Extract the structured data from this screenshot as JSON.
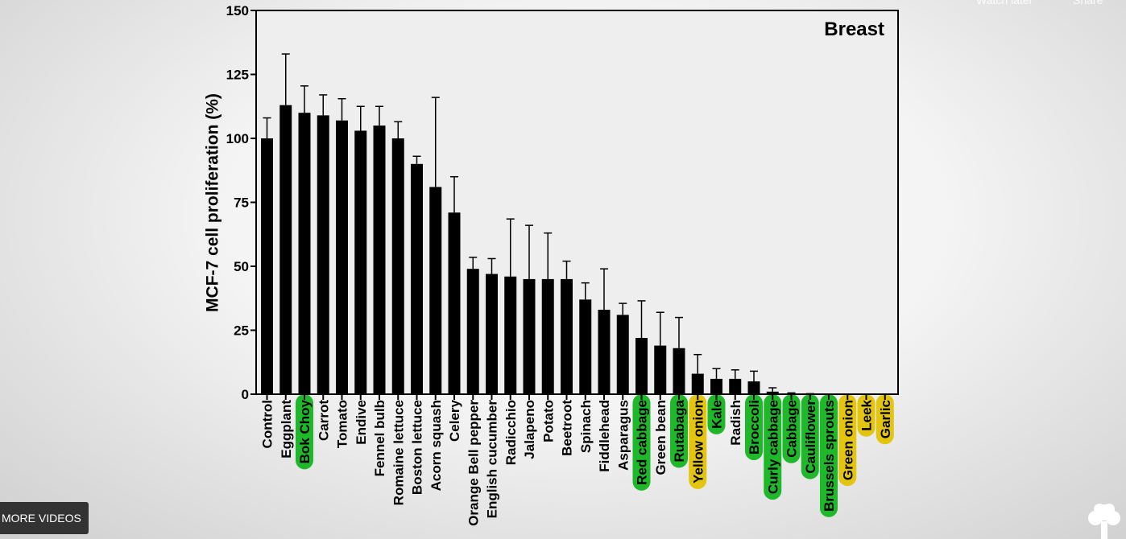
{
  "overlay": {
    "more_videos": "MORE VIDEOS",
    "watch_later": "Watch later",
    "share": "Share",
    "logo_icon": "tree-icon"
  },
  "colors": {
    "bar": "#000000",
    "green_highlight": "#1fb82a",
    "yellow_highlight": "#e3c40f",
    "plot_background": "#eeeeee"
  },
  "chart_data": {
    "type": "bar",
    "title": "Breast",
    "xlabel": "",
    "ylabel": "MCF-7 cell proliferation (%)",
    "ylim": [
      0,
      150
    ],
    "yticks": [
      0,
      25,
      50,
      75,
      100,
      125,
      150
    ],
    "grid": false,
    "error_bars": true,
    "categories": [
      "Control",
      "Eggplant",
      "Bok Choy",
      "Carrot",
      "Tomato",
      "Endive",
      "Fennel bulb",
      "Romaine lettuce",
      "Boston lettuce",
      "Acorn squash",
      "Celery",
      "Orange Bell pepper",
      "English cucumber",
      "Radicchio",
      "Jalapeno",
      "Potato",
      "Beetroot",
      "Spinach",
      "Fiddlehead",
      "Asparagus",
      "Red cabbage",
      "Green bean",
      "Rutabaga",
      "Yellow onion",
      "Kale",
      "Radish",
      "Broccoli",
      "Curly cabbage",
      "Cabbage",
      "Cauliflower",
      "Brussels sprouts",
      "Green onion",
      "Leek",
      "Garlic"
    ],
    "values": [
      100,
      113,
      110,
      109,
      107,
      103,
      105,
      100,
      90,
      81,
      71,
      49,
      47,
      46,
      45,
      45,
      45,
      37,
      33,
      31,
      22,
      19,
      18,
      8,
      6,
      6,
      5,
      1,
      0,
      0,
      0,
      0,
      0,
      0
    ],
    "error_upper": [
      108,
      133,
      120.5,
      117,
      115.5,
      112.5,
      112.5,
      106.5,
      93,
      116,
      85,
      53.5,
      53,
      68.5,
      66,
      63,
      52,
      43.5,
      49,
      35.5,
      36.5,
      32,
      30,
      15.5,
      10,
      9.5,
      9,
      2.5,
      0.5,
      0.2,
      0,
      0,
      0,
      0
    ],
    "label_highlight": [
      "none",
      "none",
      "green",
      "none",
      "none",
      "none",
      "none",
      "none",
      "none",
      "none",
      "none",
      "none",
      "none",
      "none",
      "none",
      "none",
      "none",
      "none",
      "none",
      "none",
      "green",
      "none",
      "green",
      "yellow",
      "green",
      "none",
      "green",
      "green",
      "green",
      "green",
      "green",
      "yellow",
      "yellow",
      "yellow"
    ]
  }
}
